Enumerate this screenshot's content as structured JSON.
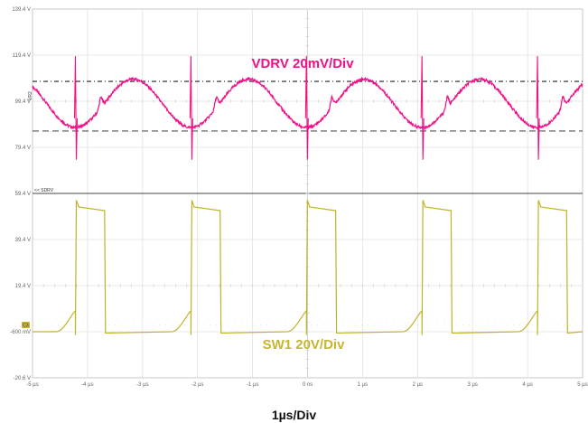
{
  "chart_data": {
    "type": "line",
    "title": "",
    "xlabel": "1µs/Div",
    "x_ticks": [
      "-5 µs",
      "-4 µs",
      "-3 µs",
      "-2 µs",
      "-1 µs",
      "0 ns",
      "1 µs",
      "2 µs",
      "3 µs",
      "4 µs",
      "5 µs"
    ],
    "xlim": [
      -5,
      5
    ],
    "x_unit": "µs",
    "grid": true,
    "panels": [
      {
        "name": "upper",
        "y_ticks": [
          "139.4 V",
          "119.4 V",
          "99.4 V",
          "79.4 V",
          "59.4 V"
        ],
        "ylim": [
          59.4,
          139.4
        ],
        "marker": "VR2",
        "series": [
          {
            "name": "VDRV 20mV/Div",
            "color": "#ee1188",
            "waveform": "ripple",
            "period_us": 2.1,
            "first_spike_us": -4.22,
            "crest_v": 109.0,
            "trough_v": 88.0,
            "spike_low_v": 74.0,
            "spike_high_v": 119.0
          }
        ],
        "reference_lines": [
          {
            "y": 108.0,
            "style": "dash-dot",
            "color": "#222222"
          },
          {
            "y": 86.5,
            "style": "dashed",
            "color": "#555555"
          }
        ]
      },
      {
        "name": "lower",
        "y_ticks": [
          "59.4 V",
          "39.4 V",
          "19.4 V",
          "-600 mV",
          "-20.6 V"
        ],
        "ylim": [
          -20.6,
          59.4
        ],
        "marker": "<< SDRV",
        "ground_marker": "C3",
        "series": [
          {
            "name": "SW1 20V/Div",
            "color": "#bfb22c",
            "waveform": "switching",
            "period_us": 2.1,
            "first_rise_us": -4.22,
            "high_end_offset_us": 0.53,
            "high_v": 52.0,
            "high_peak_v": 56.5,
            "low_v": -0.6,
            "ramp_peak_v": 8.5
          }
        ]
      }
    ]
  }
}
